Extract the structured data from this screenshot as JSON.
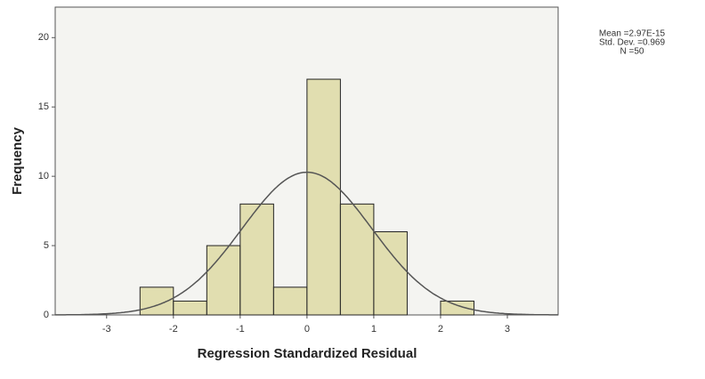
{
  "chart_data": {
    "type": "histogram",
    "x_label": "Regression Standardized Residual",
    "y_label": "Frequency",
    "bins": [
      -2.5,
      -2.0,
      -1.5,
      -1.0,
      -0.5,
      0.0,
      0.5,
      1.0,
      1.5,
      2.0,
      2.5
    ],
    "values": [
      2,
      1,
      5,
      8,
      2,
      17,
      8,
      6,
      0,
      1
    ],
    "color": "#ddd9a4",
    "curve_color": "#555555",
    "xlim": [
      -3.77,
      3.76
    ],
    "ylim": [
      0,
      22.2
    ],
    "xticks": [
      -3,
      -2,
      -1,
      0,
      1,
      2,
      3
    ],
    "yticks": [
      0,
      5,
      10,
      15,
      20
    ],
    "stats": [
      {
        "value": 2.97e-15,
        "label": "Mean =2.97E-15"
      },
      {
        "value": 0.969,
        "label": "Std. Dev. =0.969"
      },
      {
        "value": 50,
        "label": "N =50"
      }
    ]
  }
}
